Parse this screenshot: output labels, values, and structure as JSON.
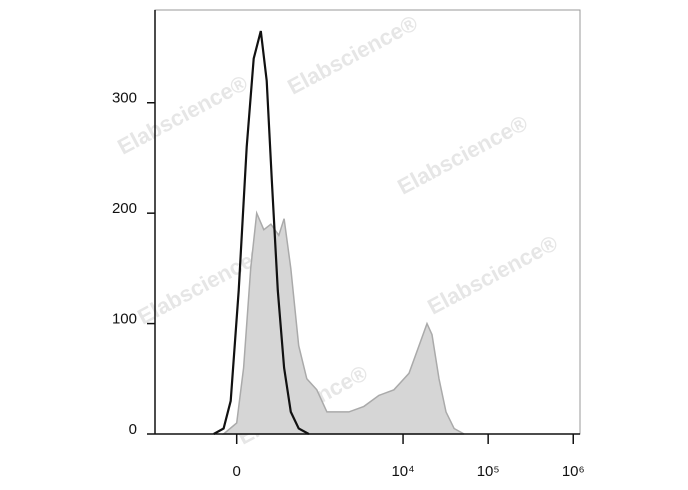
{
  "chart_data": {
    "type": "histogram-overlay",
    "xscale": "biexponential",
    "xlim": [
      -1000,
      1200000
    ],
    "xticks": [
      0,
      {
        "value": 10000,
        "label": "10⁴"
      },
      {
        "value": 100000,
        "label": "10⁵"
      },
      {
        "value": 1000000,
        "label": "10⁶"
      }
    ],
    "ylim": [
      0,
      384
    ],
    "yticks": [
      0,
      100,
      200,
      300
    ],
    "watermark": "Elabscience®",
    "series": [
      {
        "color": "#aaaaaa",
        "fill": "#d6d6d6",
        "x": [
          -80,
          0,
          42,
          86,
          126,
          178,
          236,
          311,
          369,
          454,
          574,
          723,
          957,
          1263,
          1754,
          2304,
          3467,
          5200,
          7810,
          11740,
          15390,
          19120,
          21900,
          26470,
          32000,
          39760,
          52150
        ],
        "values": [
          0,
          10,
          60,
          150,
          200,
          185,
          190,
          180,
          195,
          150,
          80,
          50,
          40,
          20,
          20,
          20,
          25,
          35,
          40,
          55,
          80,
          100,
          90,
          50,
          20,
          5,
          0
        ]
      },
      {
        "color": "#111111",
        "x": [
          -147,
          -80,
          -36,
          12,
          61,
          106,
          155,
          201,
          244,
          301,
          369,
          454,
          574,
          765
        ],
        "values": [
          0,
          5,
          30,
          130,
          260,
          340,
          365,
          320,
          230,
          130,
          60,
          20,
          5,
          0
        ]
      }
    ]
  }
}
